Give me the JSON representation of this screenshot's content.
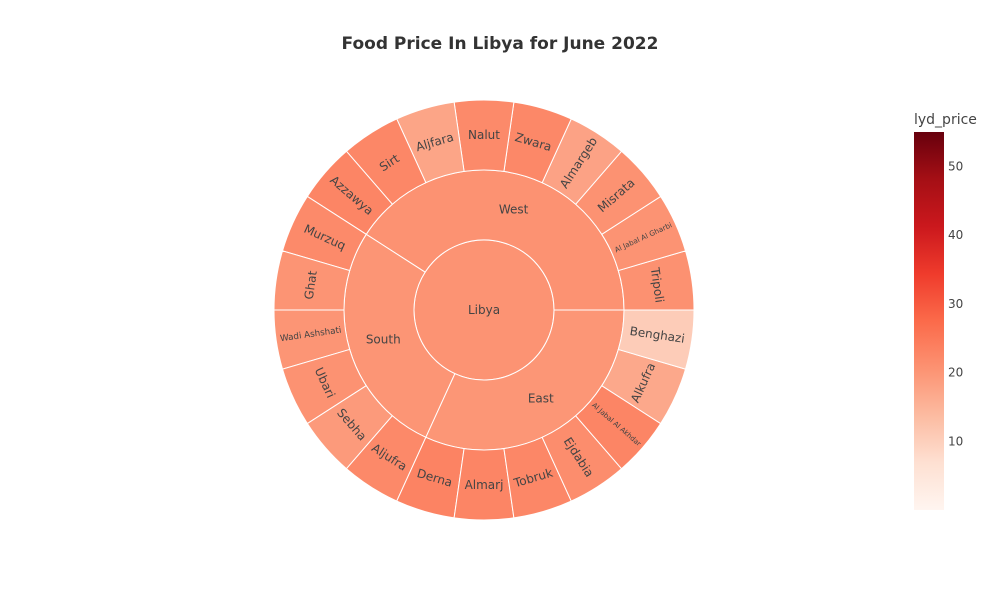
{
  "chart_data": {
    "type": "sunburst",
    "title": "Food Price In Libya for June 2022",
    "colorbar": {
      "title": "lyd_price",
      "min": 0,
      "max": 55,
      "ticks": [
        10,
        20,
        30,
        40,
        50
      ]
    },
    "colorscale": [
      "#fff5f0",
      "#fee0d2",
      "#fcbba1",
      "#fc9272",
      "#fb6a4a",
      "#ef3b2c",
      "#cb181d",
      "#a50f15",
      "#67000d"
    ],
    "root": {
      "label": "Libya",
      "value": 20.5
    },
    "regions": [
      {
        "label": "West",
        "value": 20.6,
        "children": [
          {
            "label": "Tripoli",
            "value": 20.8
          },
          {
            "label": "Al Jabal Al Gharbi",
            "value": 20.5
          },
          {
            "label": "Misrata",
            "value": 20.6
          },
          {
            "label": "Almargeb",
            "value": 17.9
          },
          {
            "label": "Zwara",
            "value": 22.3
          },
          {
            "label": "Nalut",
            "value": 22.0
          },
          {
            "label": "Aljfara",
            "value": 17.5
          },
          {
            "label": "Sirt",
            "value": 22.5
          },
          {
            "label": "Azzawya",
            "value": 22.8
          }
        ]
      },
      {
        "label": "South",
        "value": 20.2,
        "children": [
          {
            "label": "Murzuq",
            "value": 22.0
          },
          {
            "label": "Ghat",
            "value": 20.3
          },
          {
            "label": "Wadi Ashshati",
            "value": 20.2
          },
          {
            "label": "Ubari",
            "value": 20.6
          },
          {
            "label": "Sebha",
            "value": 19.3
          },
          {
            "label": "Aljufra",
            "value": 22.2
          }
        ]
      },
      {
        "label": "East",
        "value": 20.0,
        "children": [
          {
            "label": "Derna",
            "value": 23.2
          },
          {
            "label": "Almarj",
            "value": 22.9
          },
          {
            "label": "Tobruk",
            "value": 22.5
          },
          {
            "label": "Ejdabia",
            "value": 21.5
          },
          {
            "label": "Al Jabal Al Akhdar",
            "value": 22.8
          },
          {
            "label": "Alkufra",
            "value": 17.0
          },
          {
            "label": "Benghazi",
            "value": 10.5
          }
        ]
      }
    ]
  }
}
